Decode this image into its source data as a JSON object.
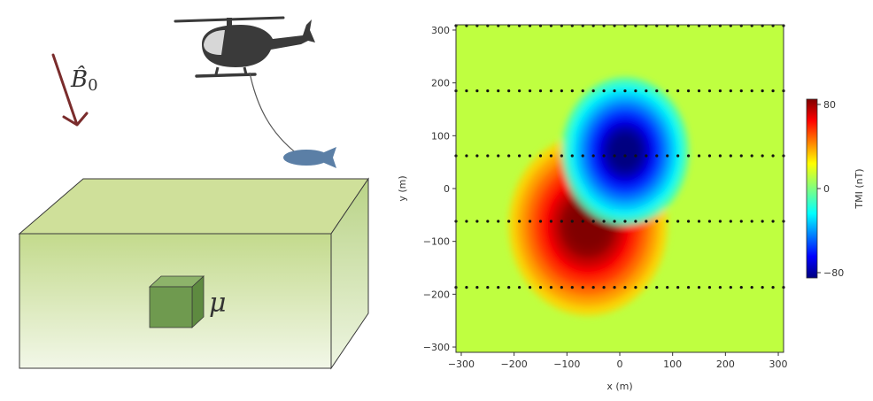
{
  "diagram": {
    "field_label": "B̂",
    "field_subscript": "0",
    "susceptibility_label": "μ",
    "colors": {
      "field_arrow": "#7a2c2c",
      "helicopter": "#3a3a3a",
      "cockpit": "#d7d7d7",
      "sensor_bird": "#5b7fa6",
      "earth_top": "#cfe09a",
      "earth_front_top": "#c3da8c",
      "earth_front_bottom": "#f2f7e8",
      "block": "#6f9a4f"
    }
  },
  "chart_data": {
    "type": "heatmap",
    "title": "",
    "xlabel": "x (m)",
    "ylabel": "y (m)",
    "colorbar_label": "TMI (nT)",
    "xlim": [
      -310,
      310
    ],
    "ylim": [
      -310,
      310
    ],
    "xticks": [
      -300,
      -200,
      -100,
      0,
      100,
      200,
      300
    ],
    "yticks": [
      -300,
      -200,
      -100,
      0,
      100,
      200,
      300
    ],
    "colorbar_ticks": [
      80,
      0,
      -80
    ],
    "colorbar_range": [
      -80,
      80
    ],
    "colormap": "jet",
    "background_value": 10,
    "anomalies": [
      {
        "type": "positive",
        "center_x": -60,
        "center_y": -70,
        "peak": 95
      },
      {
        "type": "negative",
        "center_x": 10,
        "center_y": 70,
        "peak": -95
      }
    ],
    "flight_lines_y": [
      310,
      185,
      62,
      -62,
      -187
    ],
    "flight_line_x_range": [
      -310,
      310
    ]
  }
}
